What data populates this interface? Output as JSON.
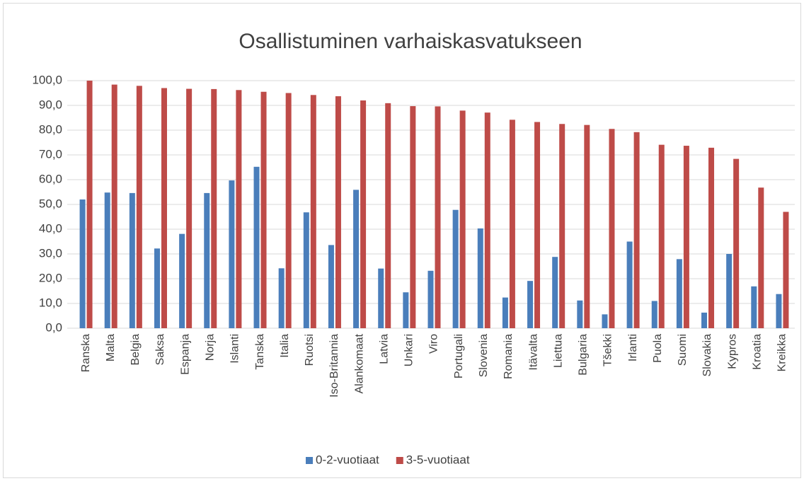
{
  "chart_data": {
    "type": "bar",
    "title": "Osallistuminen varhaiskasvatukseen",
    "categories": [
      "Ranska",
      "Malta",
      "Belgia",
      "Saksa",
      "Espanja",
      "Norja",
      "Islanti",
      "Tanska",
      "Italia",
      "Ruotsi",
      "Iso-Britannia",
      "Alankomaat",
      "Latvia",
      "Unkari",
      "Viro",
      "Portugali",
      "Slovenia",
      "Romania",
      "Itävalta",
      "Liettua",
      "Bulgaria",
      "Tšekki",
      "Irlanti",
      "Puola",
      "Suomi",
      "Slovakia",
      "Kypros",
      "Kroatia",
      "Kreikka"
    ],
    "series": [
      {
        "name": "0-2-vuotiaat",
        "color": "#4a7ebb",
        "values": [
          52,
          54.8,
          54.6,
          32.2,
          38.1,
          54.6,
          59.7,
          65.2,
          24.2,
          46.8,
          33.6,
          55.9,
          24.1,
          14.5,
          23.2,
          47.8,
          40.3,
          12.4,
          19.1,
          28.8,
          11.2,
          5.6,
          35,
          11,
          27.9,
          6.3,
          30,
          16.9,
          13.8
        ]
      },
      {
        "name": "3-5-vuotiaat",
        "color": "#be4b48",
        "values": [
          100,
          98.4,
          97.9,
          97,
          96.7,
          96.6,
          96.2,
          95.5,
          95,
          94.2,
          93.7,
          92,
          90.9,
          89.7,
          89.6,
          87.9,
          87.1,
          84.2,
          83.3,
          82.5,
          82.1,
          80.5,
          79.2,
          74.1,
          73.7,
          72.9,
          68.4,
          56.8,
          47
        ]
      }
    ],
    "ylim": [
      0,
      100
    ],
    "yticks": [
      {
        "value": 0,
        "label": "0,0"
      },
      {
        "value": 10,
        "label": "10,0"
      },
      {
        "value": 20,
        "label": "20,0"
      },
      {
        "value": 30,
        "label": "30,0"
      },
      {
        "value": 40,
        "label": "40,0"
      },
      {
        "value": 50,
        "label": "50,0"
      },
      {
        "value": 60,
        "label": "60,0"
      },
      {
        "value": 70,
        "label": "70,0"
      },
      {
        "value": 80,
        "label": "80,0"
      },
      {
        "value": 90,
        "label": "90,0"
      },
      {
        "value": 100,
        "label": "100,0"
      }
    ],
    "grid": true,
    "legend": "bottom"
  }
}
